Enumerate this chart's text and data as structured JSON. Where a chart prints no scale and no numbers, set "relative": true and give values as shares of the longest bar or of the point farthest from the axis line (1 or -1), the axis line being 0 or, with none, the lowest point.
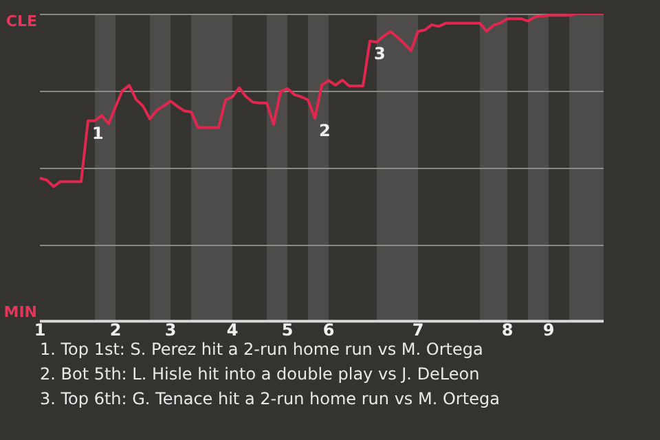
{
  "chart_data": {
    "type": "line",
    "relative": true,
    "categories": [
      "1",
      null,
      null,
      null,
      null,
      null,
      null,
      null,
      null,
      null,
      null,
      "2",
      null,
      null,
      null,
      null,
      null,
      null,
      null,
      "3",
      null,
      null,
      null,
      null,
      null,
      null,
      null,
      null,
      "4",
      null,
      null,
      null,
      null,
      null,
      null,
      null,
      "5",
      null,
      null,
      null,
      null,
      null,
      "6",
      null,
      null,
      null,
      null,
      null,
      null,
      null,
      null,
      null,
      null,
      null,
      null,
      "7",
      null,
      null,
      null,
      null,
      null,
      null,
      null,
      null,
      null,
      null,
      null,
      null,
      "8",
      null,
      null,
      null,
      null,
      null,
      "9",
      null,
      null,
      null,
      null,
      null,
      null,
      null,
      null
    ],
    "series": [
      {
        "color": "#e0284f",
        "values": [
          0.465,
          0.459,
          0.438,
          0.454,
          0.454,
          0.454,
          0.454,
          0.652,
          0.652,
          0.669,
          0.642,
          0.697,
          0.75,
          0.767,
          0.721,
          0.7,
          0.658,
          0.686,
          0.7,
          0.716,
          0.699,
          0.684,
          0.681,
          0.63,
          0.63,
          0.63,
          0.63,
          0.72,
          0.73,
          0.759,
          0.73,
          0.712,
          0.71,
          0.71,
          0.64,
          0.746,
          0.757,
          0.737,
          0.73,
          0.72,
          0.66,
          0.768,
          0.783,
          0.768,
          0.784,
          0.765,
          0.765,
          0.765,
          0.911,
          0.908,
          0.927,
          0.942,
          0.924,
          0.903,
          0.88,
          0.943,
          0.947,
          0.964,
          0.959,
          0.969,
          0.969,
          0.969,
          0.969,
          0.969,
          0.969,
          0.943,
          0.963,
          0.97,
          0.984,
          0.984,
          0.984,
          0.976,
          0.99,
          0.992,
          0.995,
          0.995,
          0.995,
          0.995,
          1,
          1,
          1,
          1,
          1
        ],
        "name": null
      }
    ],
    "grid": "y",
    "legend": false,
    "marker": "none",
    "line_style": "solid",
    "annotations": [
      "1",
      "2",
      "3",
      "CLE",
      "MIN",
      "1. Top 1st: S. Perez hit a 2-run home run vs M. Ortega",
      "2. Bot 5th: L. Hisle hit into a double play vs J. DeLeon",
      "3. Top 6th: G. Tenace hit a 2-run home run vs M. Ortega"
    ]
  }
}
